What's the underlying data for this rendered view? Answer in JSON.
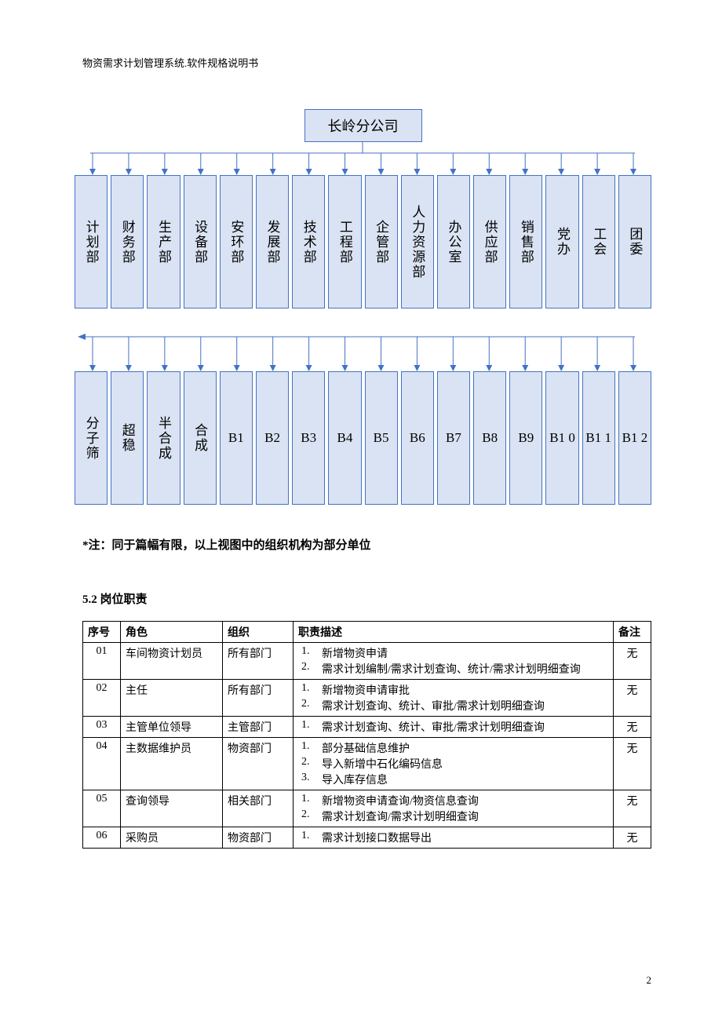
{
  "doc_header": "物资需求计划管理系统.软件规格说明书",
  "org_chart": {
    "root": "长岭分公司",
    "row1": [
      "计划部",
      "财务部",
      "生产部",
      "设备部",
      "安环部",
      "发展部",
      "技术部",
      "工程部",
      "企管部",
      "人力资源部",
      "办公室",
      "供应部",
      "销售部",
      "党办",
      "工会",
      "团委"
    ],
    "row2_vertical": [
      "分子筛",
      "超稳",
      "半合成",
      "合成"
    ],
    "row2_horiz": [
      "B1",
      "B2",
      "B3",
      "B4",
      "B5",
      "B6",
      "B7",
      "B8",
      "B9",
      "B1\n0",
      "B1\n1",
      "B1\n2"
    ],
    "box_fill": "#dae3f3",
    "box_border": "#4472c4",
    "line_color": "#4472c4"
  },
  "note_text": "*注：同于篇幅有限，以上视图中的组织机构为部分单位",
  "section_5_2": "5.2  岗位职责",
  "roles_table": {
    "columns": [
      "序号",
      "角色",
      "组织",
      "职责描述",
      "备注"
    ],
    "rows": [
      {
        "seq": "01",
        "role": "车间物资计划员",
        "org": "所有部门",
        "duties": [
          "新增物资申请",
          "需求计划编制/需求计划查询、统计/需求计划明细查询"
        ],
        "remark": "无"
      },
      {
        "seq": "02",
        "role": "主任",
        "org": "所有部门",
        "duties": [
          "新增物资申请审批",
          "需求计划查询、统计、审批/需求计划明细查询"
        ],
        "remark": "无"
      },
      {
        "seq": "03",
        "role": "主管单位领导",
        "org": "主管部门",
        "duties": [
          "需求计划查询、统计、审批/需求计划明细查询"
        ],
        "remark": "无"
      },
      {
        "seq": "04",
        "role": "主数据维护员",
        "org": "物资部门",
        "duties": [
          "部分基础信息维护",
          "导入新增中石化编码信息",
          "导入库存信息"
        ],
        "remark": "无"
      },
      {
        "seq": "05",
        "role": "查询领导",
        "org": "相关部门",
        "duties": [
          "新增物资申请查询/物资信息查询",
          "需求计划查询/需求计划明细查询"
        ],
        "remark": "无"
      },
      {
        "seq": "06",
        "role": "采购员",
        "org": "物资部门",
        "duties": [
          "需求计划接口数据导出"
        ],
        "remark": "无"
      }
    ]
  },
  "page_number": "2"
}
